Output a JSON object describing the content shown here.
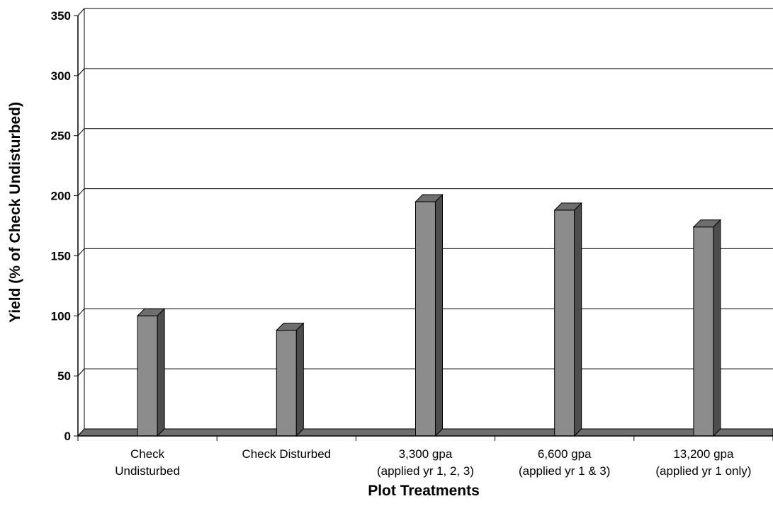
{
  "chart_data": {
    "type": "bar",
    "categories": [
      [
        "Check",
        "Undisturbed"
      ],
      [
        "Check Disturbed"
      ],
      [
        "3,300 gpa",
        "(applied yr 1, 2, 3)"
      ],
      [
        "6,600 gpa",
        "(applied yr 1 & 3)"
      ],
      [
        "13,200 gpa",
        "(applied yr 1 only)"
      ]
    ],
    "values": [
      100,
      88,
      195,
      188,
      174
    ],
    "xlabel": "Plot Treatments",
    "ylabel": "Yield (% of Check Undisturbed)",
    "ylim": [
      0,
      350
    ],
    "yticks": [
      "0",
      "50",
      "100",
      "150",
      "200",
      "250",
      "300",
      "350"
    ],
    "grid": true,
    "legend": "none",
    "colors": {
      "bar_front": "#8c8c8c",
      "bar_top": "#6e6e6e",
      "bar_side": "#4d4d4d",
      "floor": "#6e6e6e",
      "grid": "#000000"
    }
  }
}
